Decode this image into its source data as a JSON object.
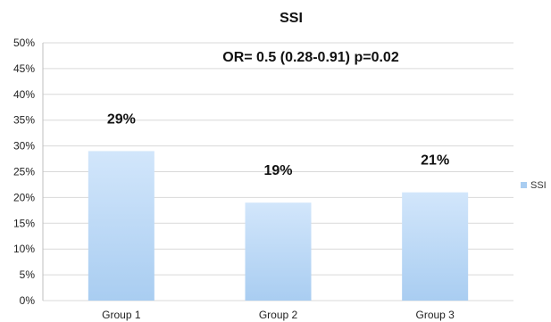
{
  "chart_data": {
    "type": "bar",
    "title": "SSI",
    "annotation": "OR= 0.5 (0.28-0.91) p=0.02",
    "categories": [
      "Group 1",
      "Group 2",
      "Group 3"
    ],
    "series": [
      {
        "name": "SSI",
        "values": [
          29,
          19,
          21
        ],
        "labels": [
          "29%",
          "19%",
          "21%"
        ]
      }
    ],
    "ylim": [
      0,
      50
    ],
    "yticks": [
      0,
      5,
      10,
      15,
      20,
      25,
      30,
      35,
      40,
      45,
      50
    ],
    "ytick_labels": [
      "0%",
      "5%",
      "10%",
      "15%",
      "20%",
      "25%",
      "30%",
      "35%",
      "40%",
      "45%",
      "50%"
    ],
    "grid": true,
    "legend_position": "right",
    "colors": {
      "bar_top": "#d2e6fb",
      "bar_bottom": "#a9cdf1",
      "grid": "#d9d9d9",
      "axis": "#bfbfbf",
      "legend_swatch": "#a9cdf1"
    }
  }
}
